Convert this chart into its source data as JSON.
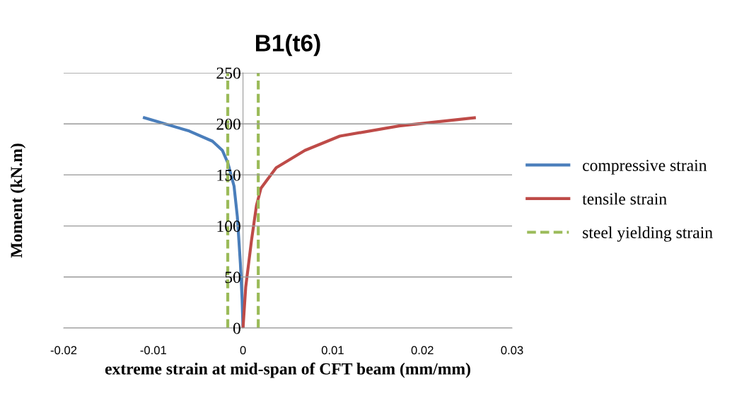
{
  "chart_data": {
    "type": "line",
    "title": "B1(t6)",
    "xlabel": "extreme strain at mid-span of CFT beam (mm/mm)",
    "ylabel": "Moment (kN.m)",
    "xlim": [
      -0.02,
      0.03
    ],
    "xticks": [
      -0.02,
      -0.01,
      0,
      0.01,
      0.02,
      0.03
    ],
    "ylim": [
      0,
      250
    ],
    "yticks": [
      0,
      50,
      100,
      150,
      200,
      250
    ],
    "grid": "y",
    "legend": "right",
    "marker": "none",
    "series": [
      {
        "name": "compressive strain",
        "color": "#4a7ebb",
        "x": [
          -0.011,
          -0.006,
          -0.0034,
          -0.0023,
          -0.0017,
          -0.001,
          -0.00063,
          -0.00029,
          -0.0001,
          0
        ],
        "values": [
          206,
          193,
          183,
          174,
          162,
          139,
          109,
          63,
          28,
          0
        ]
      },
      {
        "name": "tensile strain",
        "color": "#be4b48",
        "x": [
          0,
          0.0003,
          0.00095,
          0.0015,
          0.002,
          0.0037,
          0.0069,
          0.0108,
          0.0174,
          0.0258
        ],
        "values": [
          0,
          40,
          86,
          120,
          137,
          157,
          174,
          188,
          198,
          206
        ]
      },
      {
        "name": "steel yielding strain",
        "color": "#9bbb59",
        "line_style": "dashed",
        "x": [
          -0.0017,
          -0.0017,
          0,
          0.0017,
          0.0017
        ],
        "values": [
          0,
          250,
          null,
          0,
          250
        ]
      }
    ]
  }
}
